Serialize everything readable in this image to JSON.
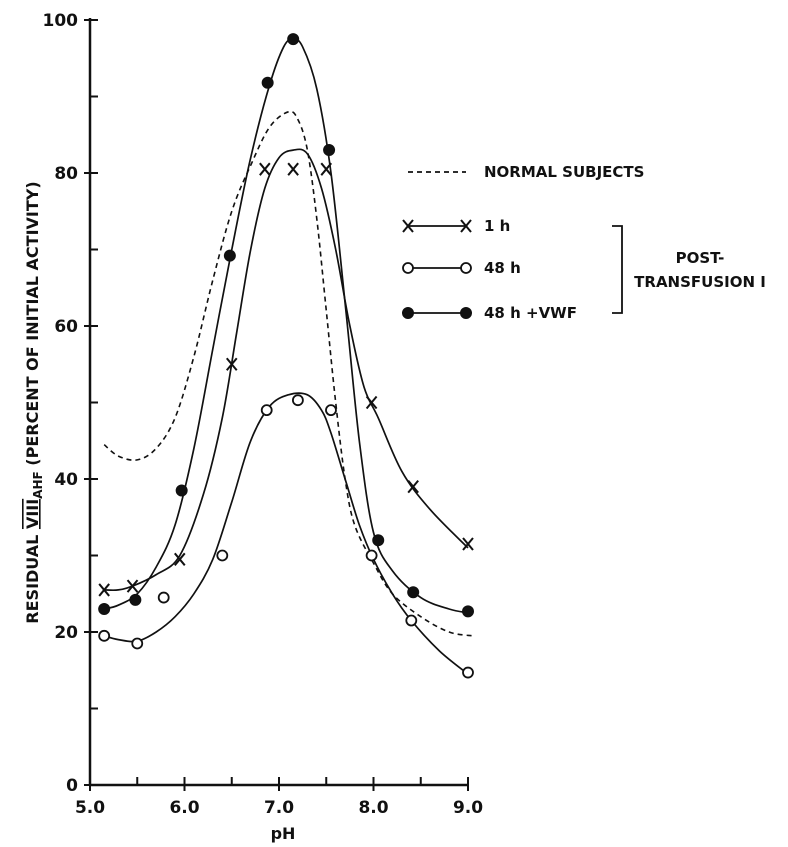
{
  "chart_data": {
    "type": "line",
    "xlabel": "pH",
    "ylabel": "RESIDUAL VIII AHF (PERCENT OF INITIAL ACTIVITY)",
    "ylabel_parts": [
      "RESIDUAL ",
      "VIII",
      "AHF",
      " (PERCENT OF INITIAL ACTIVITY)"
    ],
    "xlim": [
      5.0,
      9.0
    ],
    "ylim": [
      0,
      100
    ],
    "x_ticks": [
      5.0,
      6.0,
      7.0,
      8.0,
      9.0
    ],
    "x_tick_labels": [
      "5.0",
      "6.0",
      "7.0",
      "8.0",
      "9.0"
    ],
    "y_ticks": [
      0,
      20,
      40,
      60,
      80,
      100
    ],
    "y_tick_labels": [
      "0",
      "20",
      "40",
      "60",
      "80",
      "100"
    ],
    "grid": false,
    "legend_position": "right",
    "group_label_lines": [
      "POST-",
      "TRANSFUSION I"
    ],
    "series": [
      {
        "name": "NORMAL SUBJECTS",
        "style": "dashed",
        "marker": "none",
        "curve": [
          [
            5.15,
            44.5
          ],
          [
            5.3,
            43
          ],
          [
            5.5,
            42.5
          ],
          [
            5.7,
            44
          ],
          [
            5.9,
            48
          ],
          [
            6.1,
            56
          ],
          [
            6.3,
            66
          ],
          [
            6.5,
            75
          ],
          [
            6.7,
            81
          ],
          [
            6.9,
            86
          ],
          [
            7.1,
            88
          ],
          [
            7.2,
            87
          ],
          [
            7.3,
            83
          ],
          [
            7.4,
            74
          ],
          [
            7.5,
            62
          ],
          [
            7.6,
            50
          ],
          [
            7.7,
            40
          ],
          [
            7.8,
            34
          ],
          [
            8.0,
            29
          ],
          [
            8.2,
            25
          ],
          [
            8.5,
            22
          ],
          [
            8.8,
            20
          ],
          [
            9.05,
            19.5
          ]
        ],
        "points": []
      },
      {
        "name": "1 h",
        "style": "solid",
        "marker": "x",
        "curve": [
          [
            5.15,
            25.5
          ],
          [
            5.3,
            25.5
          ],
          [
            5.45,
            26
          ],
          [
            5.7,
            27.5
          ],
          [
            5.95,
            30
          ],
          [
            6.2,
            38
          ],
          [
            6.4,
            48
          ],
          [
            6.55,
            59
          ],
          [
            6.7,
            70
          ],
          [
            6.85,
            78
          ],
          [
            7.0,
            82
          ],
          [
            7.15,
            83
          ],
          [
            7.3,
            82.5
          ],
          [
            7.45,
            78
          ],
          [
            7.6,
            70
          ],
          [
            7.75,
            60
          ],
          [
            7.9,
            52
          ],
          [
            8.05,
            48
          ],
          [
            8.3,
            41
          ],
          [
            8.6,
            36
          ],
          [
            9.0,
            31
          ]
        ],
        "points": [
          [
            5.15,
            25.5
          ],
          [
            5.45,
            26
          ],
          [
            5.95,
            29.5
          ],
          [
            6.5,
            55
          ],
          [
            6.85,
            80.5
          ],
          [
            7.15,
            80.5
          ],
          [
            7.5,
            80.5
          ],
          [
            7.98,
            50
          ],
          [
            8.42,
            39
          ],
          [
            9.0,
            31.5
          ]
        ]
      },
      {
        "name": "48 h",
        "style": "solid",
        "marker": "open-circle",
        "curve": [
          [
            5.15,
            19.5
          ],
          [
            5.3,
            19
          ],
          [
            5.5,
            18.8
          ],
          [
            5.7,
            20
          ],
          [
            5.9,
            22
          ],
          [
            6.1,
            25
          ],
          [
            6.3,
            29.5
          ],
          [
            6.5,
            37
          ],
          [
            6.7,
            45
          ],
          [
            6.9,
            49.5
          ],
          [
            7.1,
            51
          ],
          [
            7.3,
            51
          ],
          [
            7.45,
            49
          ],
          [
            7.55,
            46
          ],
          [
            7.7,
            40
          ],
          [
            7.85,
            34
          ],
          [
            8.0,
            29.5
          ],
          [
            8.2,
            25
          ],
          [
            8.4,
            21.5
          ],
          [
            8.7,
            17.5
          ],
          [
            9.0,
            14.5
          ]
        ],
        "points": [
          [
            5.15,
            19.5
          ],
          [
            5.5,
            18.5
          ],
          [
            5.78,
            24.5
          ],
          [
            6.4,
            30
          ],
          [
            6.87,
            49
          ],
          [
            7.2,
            50.3
          ],
          [
            7.55,
            49
          ],
          [
            7.98,
            30
          ],
          [
            8.4,
            21.5
          ],
          [
            9.0,
            14.7
          ]
        ]
      },
      {
        "name": "48 h +VWF",
        "style": "solid",
        "marker": "filled-circle",
        "curve": [
          [
            5.15,
            23
          ],
          [
            5.3,
            23.5
          ],
          [
            5.5,
            25
          ],
          [
            5.7,
            28.5
          ],
          [
            5.9,
            34
          ],
          [
            6.1,
            44
          ],
          [
            6.3,
            57
          ],
          [
            6.5,
            70
          ],
          [
            6.7,
            82
          ],
          [
            6.9,
            91.5
          ],
          [
            7.05,
            96.5
          ],
          [
            7.15,
            97.5
          ],
          [
            7.25,
            96.5
          ],
          [
            7.4,
            91
          ],
          [
            7.55,
            80
          ],
          [
            7.7,
            63
          ],
          [
            7.85,
            45
          ],
          [
            8.0,
            33
          ],
          [
            8.2,
            28
          ],
          [
            8.5,
            24.5
          ],
          [
            8.8,
            23
          ],
          [
            9.0,
            22.5
          ]
        ],
        "points": [
          [
            5.15,
            23
          ],
          [
            5.48,
            24.2
          ],
          [
            5.97,
            38.5
          ],
          [
            6.48,
            69.2
          ],
          [
            6.88,
            91.8
          ],
          [
            7.15,
            97.5
          ],
          [
            7.53,
            83
          ],
          [
            8.05,
            32
          ],
          [
            8.42,
            25.2
          ],
          [
            9.0,
            22.7
          ]
        ]
      }
    ]
  }
}
